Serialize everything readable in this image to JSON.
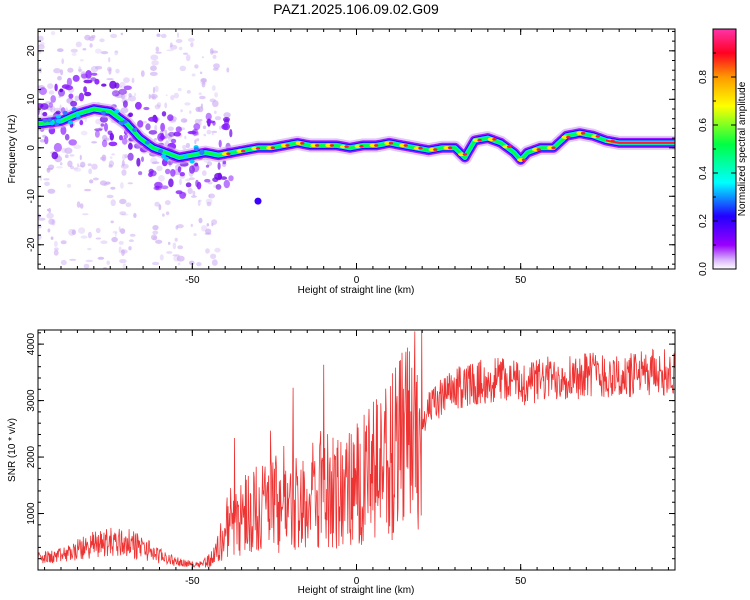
{
  "title": "PAZ1.2025.106.09.02.G09",
  "chart_data": [
    {
      "type": "heatmap",
      "xlabel": "Height of straight line (km)",
      "ylabel": "Frequency (Hz)",
      "xlim": [
        -97,
        97
      ],
      "ylim": [
        -25,
        24.5
      ],
      "x_ticks": [
        -50,
        0,
        50
      ],
      "y_ticks": [
        -20,
        -10,
        0,
        10,
        20
      ],
      "colorbar": {
        "label": "Normalized spectral amplitude",
        "range": [
          0.0,
          1.0
        ],
        "ticks": [
          0.0,
          0.2,
          0.4,
          0.6,
          0.8
        ],
        "colormap": [
          "#ffffff",
          "#9900ff",
          "#0000ff",
          "#00ffff",
          "#00ff00",
          "#ffff00",
          "#ff8800",
          "#ff0033",
          "#ff33aa"
        ]
      },
      "ridge": {
        "x": [
          -96,
          -90,
          -85,
          -80,
          -75,
          -70,
          -66,
          -62,
          -58,
          -54,
          -50,
          -46,
          -42,
          -38,
          -34,
          -30,
          -26,
          -22,
          -18,
          -14,
          -10,
          -6,
          -2,
          2,
          6,
          10,
          14,
          18,
          22,
          26,
          30,
          33,
          36,
          40,
          44,
          48,
          50,
          52,
          56,
          60,
          64,
          68,
          72,
          76,
          80,
          85,
          90,
          96
        ],
        "y": [
          5,
          5.5,
          7,
          8,
          7.5,
          5,
          2,
          0,
          -1,
          -2,
          -1.5,
          -1,
          -1.5,
          -1,
          -0.5,
          0,
          0,
          0.5,
          1,
          0.5,
          0.5,
          0.5,
          0,
          0.5,
          0.5,
          1,
          0.5,
          0,
          -0.5,
          0,
          0,
          -2,
          1.5,
          2,
          1,
          -1,
          -2.5,
          -1,
          0,
          0,
          2.5,
          3,
          2.5,
          1.5,
          1,
          1,
          1,
          1
        ]
      }
    },
    {
      "type": "line",
      "xlabel": "Height of straight line (km)",
      "ylabel": "SNR (10 * v/v)",
      "xlim": [
        -97,
        97
      ],
      "ylim": [
        0,
        4250
      ],
      "x_ticks": [
        -50,
        0,
        50
      ],
      "y_ticks": [
        1000,
        2000,
        3000,
        4000
      ],
      "series": [
        {
          "color": "#ee3333",
          "x": [
            -97,
            -90,
            -85,
            -80,
            -75,
            -70,
            -65,
            -60,
            -55,
            -50,
            -47,
            -44,
            -42,
            -40,
            -38,
            -35,
            -30,
            -25,
            -20,
            -15,
            -10,
            -5,
            0,
            5,
            10,
            15,
            20,
            25,
            30,
            35,
            40,
            45,
            50,
            55,
            60,
            65,
            70,
            75,
            80,
            85,
            90,
            97
          ],
          "y": [
            200,
            250,
            350,
            450,
            500,
            480,
            400,
            250,
            150,
            100,
            120,
            200,
            400,
            700,
            900,
            1000,
            1100,
            1200,
            1150,
            1300,
            1400,
            1350,
            1500,
            1700,
            2000,
            2300,
            2700,
            3000,
            3200,
            3300,
            3350,
            3400,
            3300,
            3350,
            3400,
            3450,
            3500,
            3450,
            3400,
            3450,
            3500,
            3500
          ]
        }
      ]
    }
  ]
}
